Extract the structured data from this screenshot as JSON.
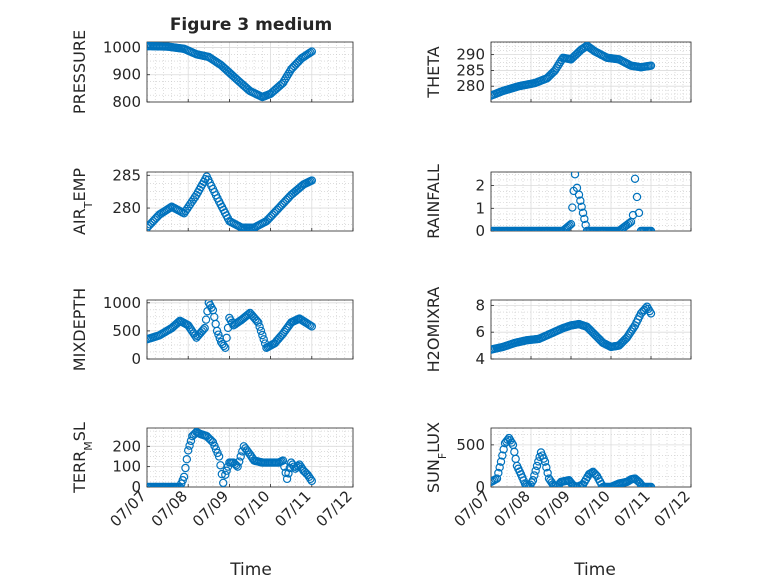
{
  "figure": {
    "title": "Figure 3 medium",
    "xlabel": "Time",
    "x_ticks": [
      "07/07",
      "07/08",
      "07/09",
      "07/10",
      "07/11",
      "07/12"
    ],
    "marker_color": "#0072BD",
    "grid": true,
    "grid_minor": true
  },
  "chart_data": [
    {
      "type": "scatter",
      "ylabel": "PRESSURE",
      "ylabel_parts": [
        {
          "t": "PRESSURE"
        }
      ],
      "xlim": [
        0,
        5
      ],
      "ylim": [
        800,
        1020
      ],
      "yticks": [
        800,
        900,
        1000
      ],
      "x": [
        0,
        0.5,
        0.9,
        1.2,
        1.5,
        1.8,
        2.2,
        2.5,
        2.8,
        3.0,
        3.3,
        3.5,
        3.75,
        4.0
      ],
      "y": [
        1005,
        1003,
        995,
        975,
        965,
        935,
        880,
        840,
        818,
        830,
        870,
        920,
        960,
        985
      ]
    },
    {
      "type": "scatter",
      "ylabel": "THETA",
      "ylabel_parts": [
        {
          "t": "THETA"
        }
      ],
      "xlim": [
        0,
        5
      ],
      "ylim": [
        275,
        294
      ],
      "yticks": [
        280,
        285,
        290
      ],
      "x": [
        0,
        0.3,
        0.7,
        1.1,
        1.4,
        1.6,
        1.8,
        2.0,
        2.25,
        2.4,
        2.6,
        2.9,
        3.2,
        3.5,
        3.75,
        4.0
      ],
      "y": [
        277,
        278.5,
        280,
        281,
        282.5,
        285,
        289,
        288.5,
        291.5,
        292.8,
        291,
        289,
        288.5,
        286.5,
        286,
        286.5
      ]
    },
    {
      "type": "scatter",
      "ylabel": "AIR_TEMP",
      "ylabel_parts": [
        {
          "t": "AIR"
        },
        {
          "t": "T",
          "sub": true
        },
        {
          "t": "EMP"
        }
      ],
      "xlim": [
        0,
        5
      ],
      "ylim": [
        276.5,
        285.5
      ],
      "yticks": [
        280,
        285
      ],
      "x": [
        0,
        0.3,
        0.6,
        0.9,
        1.2,
        1.45,
        1.75,
        2.0,
        2.3,
        2.6,
        2.9,
        3.2,
        3.5,
        3.8,
        4.0
      ],
      "y": [
        277,
        279,
        280.2,
        279.2,
        282,
        284.8,
        281,
        278,
        277,
        277,
        278,
        280,
        282,
        283.6,
        284.2
      ]
    },
    {
      "type": "scatter",
      "ylabel": "RAINFALL",
      "ylabel_parts": [
        {
          "t": "RAINFALL"
        }
      ],
      "xlim": [
        0,
        5
      ],
      "ylim": [
        0,
        2.6
      ],
      "yticks": [
        0,
        1,
        2
      ],
      "x": [
        0,
        0.5,
        1.0,
        1.5,
        1.8,
        2.0,
        2.1,
        2.15,
        2.2,
        2.4,
        2.9,
        3.2,
        3.5,
        3.55,
        3.6,
        3.65,
        3.7,
        3.75,
        3.9,
        4.0
      ],
      "y": [
        0,
        0,
        0,
        0,
        0,
        0.3,
        2.5,
        1.9,
        1.6,
        0,
        0,
        0,
        0.4,
        0.7,
        2.3,
        1.5,
        0.8,
        0,
        0,
        0
      ]
    },
    {
      "type": "scatter",
      "ylabel": "MIXDEPTH",
      "ylabel_parts": [
        {
          "t": "MIXDEPTH"
        }
      ],
      "xlim": [
        0,
        5
      ],
      "ylim": [
        0,
        1050
      ],
      "yticks": [
        0,
        500,
        1000
      ],
      "x": [
        0,
        0.3,
        0.6,
        0.8,
        1.0,
        1.2,
        1.4,
        1.5,
        1.6,
        1.7,
        1.8,
        1.9,
        2.0,
        2.1,
        2.3,
        2.5,
        2.7,
        2.9,
        3.1,
        3.3,
        3.5,
        3.7,
        3.85,
        4.0
      ],
      "y": [
        350,
        420,
        550,
        680,
        600,
        380,
        550,
        1000,
        870,
        500,
        300,
        200,
        730,
        600,
        700,
        820,
        650,
        200,
        280,
        450,
        650,
        720,
        650,
        580
      ]
    },
    {
      "type": "scatter",
      "ylabel": "H2OMIXRA",
      "ylabel_parts": [
        {
          "t": "H2OMIXRA"
        }
      ],
      "xlim": [
        0,
        5
      ],
      "ylim": [
        4,
        8.4
      ],
      "yticks": [
        4,
        6,
        8
      ],
      "x": [
        0,
        0.3,
        0.6,
        0.9,
        1.2,
        1.5,
        1.8,
        2.0,
        2.2,
        2.4,
        2.6,
        2.8,
        3.0,
        3.2,
        3.4,
        3.6,
        3.75,
        3.9,
        4.0
      ],
      "y": [
        4.7,
        4.9,
        5.2,
        5.4,
        5.5,
        5.9,
        6.3,
        6.5,
        6.6,
        6.4,
        5.8,
        5.2,
        4.9,
        5.0,
        5.6,
        6.5,
        7.4,
        7.9,
        7.4
      ]
    },
    {
      "type": "scatter",
      "ylabel": "TERR_MSL",
      "ylabel_parts": [
        {
          "t": "TERR"
        },
        {
          "t": "M",
          "sub": true
        },
        {
          "t": "SL"
        }
      ],
      "xlim": [
        0,
        5
      ],
      "ylim": [
        0,
        290
      ],
      "yticks": [
        0,
        100,
        200
      ],
      "x": [
        0,
        0.3,
        0.6,
        0.8,
        0.9,
        1.0,
        1.1,
        1.2,
        1.3,
        1.45,
        1.6,
        1.75,
        1.85,
        1.9,
        2.0,
        2.1,
        2.2,
        2.35,
        2.5,
        2.6,
        2.8,
        3.0,
        3.2,
        3.3,
        3.4,
        3.5,
        3.6,
        3.7,
        3.8,
        3.9,
        4.0
      ],
      "y": [
        0,
        0,
        0,
        0,
        50,
        180,
        250,
        270,
        260,
        250,
        220,
        150,
        20,
        60,
        120,
        120,
        100,
        200,
        160,
        130,
        120,
        120,
        120,
        130,
        40,
        120,
        90,
        110,
        80,
        60,
        30
      ]
    },
    {
      "type": "scatter",
      "ylabel": "SUN_FLUX",
      "ylabel_parts": [
        {
          "t": "SUN"
        },
        {
          "t": "F",
          "sub": true
        },
        {
          "t": "LUX"
        }
      ],
      "xlim": [
        0,
        5
      ],
      "ylim": [
        0,
        700
      ],
      "yticks": [
        0,
        500
      ],
      "x": [
        0,
        0.15,
        0.25,
        0.35,
        0.45,
        0.55,
        0.65,
        0.75,
        0.85,
        0.95,
        1.05,
        1.15,
        1.25,
        1.35,
        1.45,
        1.55,
        1.65,
        1.75,
        1.85,
        1.95,
        2.05,
        2.15,
        2.3,
        2.45,
        2.55,
        2.65,
        2.8,
        3.0,
        3.2,
        3.4,
        3.5,
        3.6,
        3.7,
        3.8,
        3.9,
        4.0
      ],
      "y": [
        60,
        100,
        300,
        520,
        580,
        500,
        250,
        150,
        40,
        0,
        80,
        250,
        410,
        300,
        100,
        30,
        0,
        60,
        70,
        80,
        20,
        0,
        30,
        150,
        180,
        130,
        0,
        0,
        40,
        60,
        90,
        100,
        60,
        0,
        0,
        0
      ]
    }
  ]
}
